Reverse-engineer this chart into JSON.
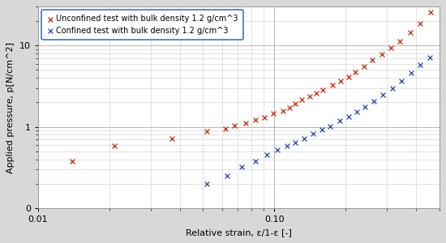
{
  "xlabel": "Relative strain, ε/1-ε [-]",
  "ylabel": "Applied pressure, p[N/cm^2]",
  "legend_unconfined": "Unconfined test with bulk density 1.2 g/cm^3",
  "legend_confined": "Confined test with bulk density 1.2 g/cm^3",
  "unconfined_color": "#cc2200",
  "confined_color": "#2244aa",
  "background_color": "#d8d8d8",
  "plot_background": "#ffffff",
  "legend_edge_color": "#4472c4",
  "unconfined_x": [
    0.014,
    0.021,
    0.037,
    0.052,
    0.062,
    0.068,
    0.076,
    0.083,
    0.091,
    0.099,
    0.109,
    0.116,
    0.123,
    0.131,
    0.141,
    0.151,
    0.161,
    0.176,
    0.191,
    0.206,
    0.221,
    0.241,
    0.261,
    0.286,
    0.311,
    0.341,
    0.376,
    0.416,
    0.461
  ],
  "unconfined_y": [
    0.38,
    0.58,
    0.72,
    0.88,
    0.95,
    1.05,
    1.12,
    1.22,
    1.32,
    1.48,
    1.58,
    1.72,
    1.92,
    2.15,
    2.35,
    2.6,
    2.85,
    3.25,
    3.65,
    4.15,
    4.75,
    5.6,
    6.6,
    7.9,
    9.3,
    11.2,
    14.5,
    18.5,
    25.5
  ],
  "confined_x": [
    0.052,
    0.063,
    0.073,
    0.083,
    0.093,
    0.103,
    0.113,
    0.123,
    0.134,
    0.146,
    0.159,
    0.173,
    0.189,
    0.206,
    0.223,
    0.243,
    0.265,
    0.289,
    0.316,
    0.346,
    0.379,
    0.416,
    0.456
  ],
  "confined_y": [
    0.2,
    0.25,
    0.32,
    0.38,
    0.46,
    0.52,
    0.58,
    0.64,
    0.72,
    0.82,
    0.92,
    1.02,
    1.18,
    1.35,
    1.52,
    1.78,
    2.08,
    2.48,
    2.98,
    3.68,
    4.58,
    5.78,
    7.18
  ],
  "ytick_positions": [
    0.1,
    1,
    10
  ],
  "ytick_labels": [
    "0",
    "1",
    "10"
  ],
  "xtick_positions": [
    0.01,
    0.1
  ],
  "xtick_labels": [
    "0.01",
    "0.10"
  ],
  "xlim": [
    0.01,
    0.5
  ],
  "ylim": [
    0.1,
    30
  ],
  "figsize": [
    5.5,
    3.0
  ],
  "dpi": 100
}
